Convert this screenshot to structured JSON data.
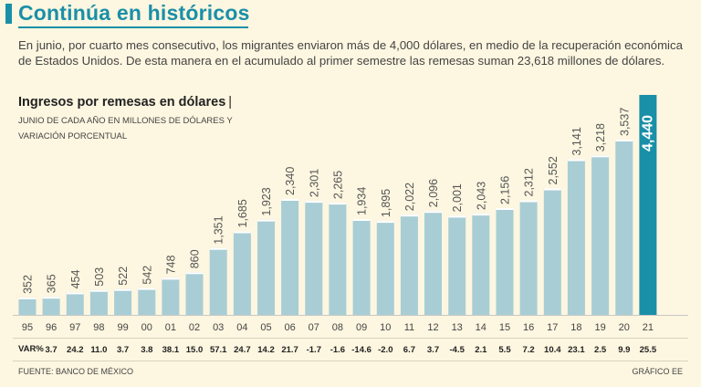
{
  "header": {
    "title": "Continúa en históricos"
  },
  "intro": "En junio, por cuarto mes consecutivo, los migrantes enviaron más de 4,000 dólares, en medio de la recuperación económica de Estados Unidos. De esta manera en el acumulado al primer semestre las remesas suman 23,618 millones de dólares.",
  "chart_title": "Ingresos por remesas en dólares",
  "chart_title_sep": "|",
  "chart_subtitle_1": "JUNIO DE CADA AÑO EN MILLONES DE DÓLARES Y",
  "chart_subtitle_2": "VARIACIÓN PORCENTUAL",
  "var_label": "VAR%",
  "source": "FUENTE: BANCO DE MÉXICO",
  "credit": "GRÁFICO EE",
  "colors": {
    "bar": "#a9cdd4",
    "bar_highlight": "#1a8fa8",
    "bar_top": "#ffffff",
    "accent": "#1a8fa8",
    "background": "#fdf6e0"
  },
  "chart_data": {
    "type": "bar",
    "title": "Ingresos por remesas en dólares",
    "subtitle": "JUNIO DE CADA AÑO EN MILLONES DE DÓLARES Y VARIACIÓN PORCENTUAL",
    "xlabel": "",
    "ylabel": "",
    "ylim": [
      0,
      4440
    ],
    "categories": [
      "95",
      "96",
      "97",
      "98",
      "99",
      "00",
      "01",
      "02",
      "03",
      "04",
      "05",
      "06",
      "07",
      "08",
      "09",
      "10",
      "11",
      "12",
      "13",
      "14",
      "15",
      "16",
      "17",
      "18",
      "19",
      "20",
      "21"
    ],
    "values": [
      352,
      365,
      454,
      503,
      522,
      542,
      748,
      860,
      1351,
      1685,
      1923,
      2340,
      2301,
      2265,
      1934,
      1895,
      2022,
      2096,
      2001,
      2043,
      2156,
      2312,
      2552,
      3141,
      3218,
      3537,
      4440
    ],
    "value_labels": [
      "352",
      "365",
      "454",
      "503",
      "522",
      "542",
      "748",
      "860",
      "1,351",
      "1,685",
      "1,923",
      "2,340",
      "2,301",
      "2,265",
      "1,934",
      "1,895",
      "2,022",
      "2,096",
      "2,001",
      "2,043",
      "2,156",
      "2,312",
      "2,552",
      "3,141",
      "3,218",
      "3,537",
      "4,440"
    ],
    "variation_pct_labels": [
      "",
      "3.7",
      "24.2",
      "11.0",
      "3.7",
      "3.8",
      "38.1",
      "15.0",
      "57.1",
      "24.7",
      "14.2",
      "21.7",
      "-1.7",
      "-1.6",
      "-14.6",
      "-2.0",
      "6.7",
      "3.7",
      "-4.5",
      "2.1",
      "5.5",
      "7.2",
      "10.4",
      "23.1",
      "2.5",
      "9.9",
      "25.5"
    ],
    "highlight_index": 26,
    "grid": false,
    "legend": "none"
  }
}
